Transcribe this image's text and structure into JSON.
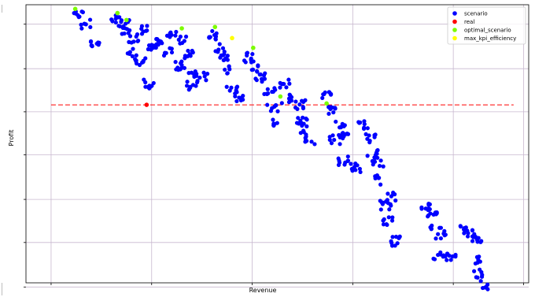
{
  "chart_data": {
    "type": "scatter",
    "title": "",
    "xlabel": "Revenue",
    "ylabel": "Profit",
    "xlim": [
      0,
      100
    ],
    "ylim": [
      0,
      100
    ],
    "grid": true,
    "legend_placement": "top-right",
    "colors": {
      "scenario": "#0000ff",
      "real": "#ff0000",
      "optimal_scenario": "#7cfc00",
      "max_kpi_efficiency": "#ffff00",
      "reference_line": "#ff0000",
      "grid": "#c8b8cf"
    },
    "reference_line": {
      "style": "dashed",
      "y": 64,
      "x": [
        5,
        97
      ]
    },
    "clusters": [
      [
        10.5,
        97.0
      ],
      [
        11.8,
        93.0
      ],
      [
        13.5,
        86.5
      ],
      [
        18.0,
        95.0
      ],
      [
        19.5,
        93.0
      ],
      [
        20.2,
        90.0
      ],
      [
        21.5,
        88.0
      ],
      [
        21.2,
        83.0
      ],
      [
        22.8,
        80.0
      ],
      [
        24.0,
        91.0
      ],
      [
        24.5,
        84.0
      ],
      [
        26.0,
        86.0
      ],
      [
        24.5,
        71.5
      ],
      [
        29.0,
        90.0
      ],
      [
        28.5,
        83.0
      ],
      [
        31.0,
        87.0
      ],
      [
        30.5,
        78.0
      ],
      [
        32.5,
        82.0
      ],
      [
        33.0,
        71.0
      ],
      [
        33.5,
        75.5
      ],
      [
        35.0,
        74.0
      ],
      [
        37.5,
        89.0
      ],
      [
        38.5,
        84.5
      ],
      [
        39.5,
        81.0
      ],
      [
        40.5,
        77.0
      ],
      [
        41.0,
        69.5
      ],
      [
        42.5,
        67.0
      ],
      [
        44.5,
        81.0
      ],
      [
        46.0,
        77.5
      ],
      [
        46.5,
        74.0
      ],
      [
        48.5,
        68.5
      ],
      [
        49.0,
        63.0
      ],
      [
        50.0,
        58.0
      ],
      [
        51.5,
        71.5
      ],
      [
        52.0,
        66.0
      ],
      [
        54.5,
        64.0
      ],
      [
        55.0,
        58.5
      ],
      [
        55.5,
        55.0
      ],
      [
        56.5,
        51.0
      ],
      [
        60.0,
        67.0
      ],
      [
        61.0,
        62.0
      ],
      [
        62.5,
        57.0
      ],
      [
        61.5,
        51.5
      ],
      [
        63.5,
        53.5
      ],
      [
        63.0,
        44.0
      ],
      [
        65.5,
        41.5
      ],
      [
        67.0,
        57.0
      ],
      [
        68.5,
        52.0
      ],
      [
        69.0,
        46.5
      ],
      [
        70.0,
        43.5
      ],
      [
        70.5,
        37.0
      ],
      [
        71.5,
        28.0
      ],
      [
        72.5,
        31.0
      ],
      [
        72.0,
        22.5
      ],
      [
        73.5,
        15.0
      ],
      [
        79.5,
        27.5
      ],
      [
        81.0,
        25.0
      ],
      [
        81.5,
        20.5
      ],
      [
        82.5,
        17.0
      ],
      [
        82.0,
        10.0
      ],
      [
        84.5,
        9.5
      ],
      [
        86.5,
        19.5
      ],
      [
        88.5,
        18.0
      ],
      [
        89.5,
        14.5
      ],
      [
        90.0,
        3.5
      ],
      [
        90.5,
        8.0
      ],
      [
        91.5,
        -1.0
      ]
    ],
    "series": [
      {
        "name": "scenario",
        "marker": "circle",
        "color": "#0000ff",
        "description": "Dense clusters of small groups of points scattered along a downward trend; each cluster center listed in clusters."
      },
      {
        "name": "real",
        "marker": "circle",
        "color": "#ff0000",
        "points": [
          [
            24.0,
            64.0
          ]
        ]
      },
      {
        "name": "optimal_scenario",
        "marker": "circle",
        "color": "#7cfc00",
        "points": [
          [
            9.8,
            98.5
          ],
          [
            18.2,
            97.0
          ],
          [
            20.0,
            94.5
          ],
          [
            31.0,
            91.5
          ],
          [
            37.6,
            92.0
          ],
          [
            45.2,
            84.5
          ],
          [
            50.6,
            67.0
          ],
          [
            59.8,
            64.5
          ]
        ]
      },
      {
        "name": "max_kpi_efficiency",
        "marker": "circle",
        "color": "#ffff00",
        "points": [
          [
            41.0,
            88.0
          ]
        ]
      }
    ]
  }
}
